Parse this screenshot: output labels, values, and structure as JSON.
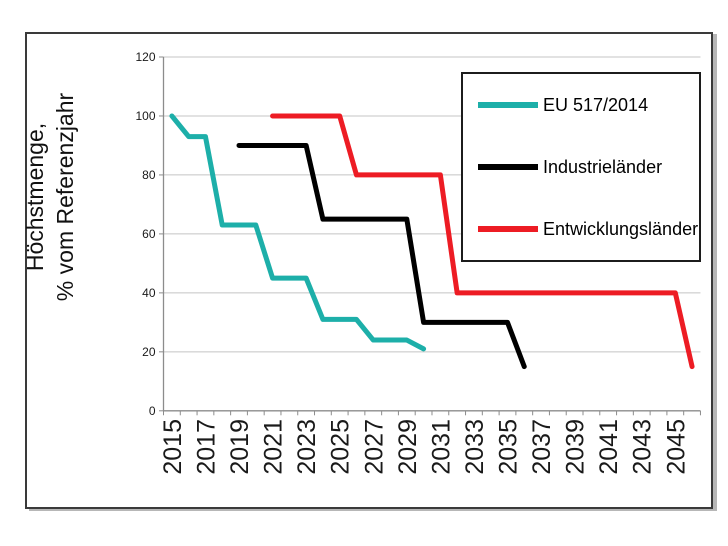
{
  "chart_data": {
    "type": "line",
    "title": "",
    "ylabel_lines": [
      "Höchstmenge,",
      "% vom Referenzjahr"
    ],
    "xlabel": "",
    "ylim": [
      0,
      120
    ],
    "y_ticks": [
      0,
      20,
      40,
      60,
      80,
      100,
      120
    ],
    "x_tick_labels": [
      "2015",
      "2017",
      "2019",
      "2021",
      "2023",
      "2025",
      "2027",
      "2029",
      "2031",
      "2033",
      "2035",
      "2037",
      "2039",
      "2041",
      "2043",
      "2045"
    ],
    "x_axis_year_range": [
      2015,
      2046
    ],
    "grid": true,
    "legend_position": "top-right",
    "legend_border": true,
    "series": [
      {
        "name": "EU 517/2014",
        "color": "#1DAFA9",
        "points": [
          [
            2015,
            100
          ],
          [
            2016,
            93
          ],
          [
            2017,
            93
          ],
          [
            2018,
            63
          ],
          [
            2020,
            63
          ],
          [
            2021,
            45
          ],
          [
            2023,
            45
          ],
          [
            2024,
            31
          ],
          [
            2026,
            31
          ],
          [
            2027,
            24
          ],
          [
            2029,
            24
          ],
          [
            2030,
            21
          ]
        ]
      },
      {
        "name": "Industrieländer",
        "color": "#000000",
        "points": [
          [
            2019,
            90
          ],
          [
            2023,
            90
          ],
          [
            2024,
            65
          ],
          [
            2029,
            65
          ],
          [
            2030,
            30
          ],
          [
            2035,
            30
          ],
          [
            2036,
            15
          ]
        ]
      },
      {
        "name": "Entwicklungsländer",
        "color": "#ED1C24",
        "points": [
          [
            2021,
            100
          ],
          [
            2025,
            100
          ],
          [
            2026,
            80
          ],
          [
            2031,
            80
          ],
          [
            2032,
            40
          ],
          [
            2045,
            40
          ],
          [
            2046,
            15
          ]
        ]
      }
    ],
    "colors": {
      "grid": "#c4c4c4",
      "axis": "#8c8c8c",
      "tick_label": "#1a1a1a",
      "frame_border": "#3a3a3a"
    }
  }
}
